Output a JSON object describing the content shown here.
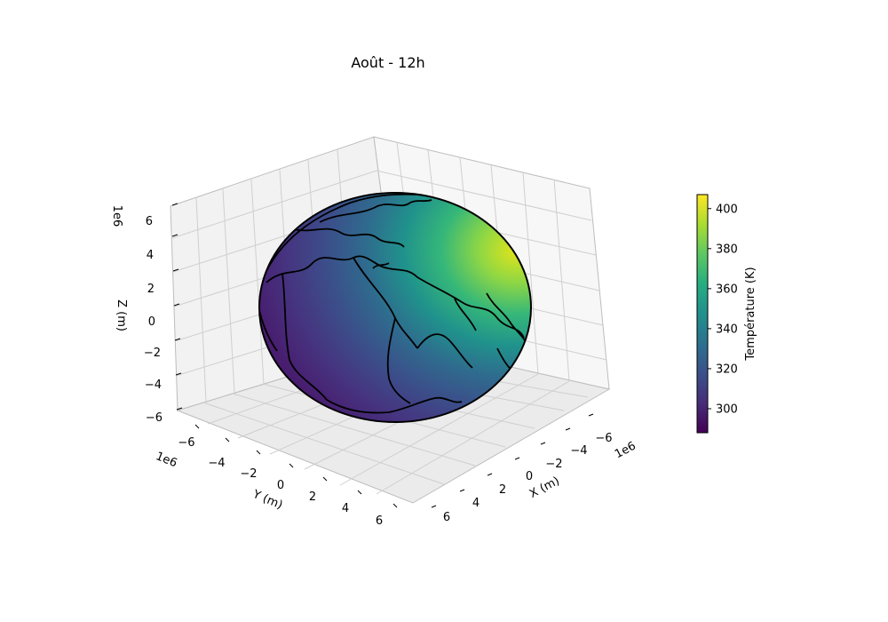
{
  "chart_data": {
    "type": "surface3d",
    "title": "Août - 12h",
    "x_axis": {
      "label": "X (m)",
      "offset_text": "1e6",
      "ticks": [
        "−6",
        "−4",
        "−2",
        "0",
        "2",
        "4",
        "6"
      ]
    },
    "y_axis": {
      "label": "Y (m)",
      "offset_text": "1e6",
      "ticks": [
        "−6",
        "−4",
        "−2",
        "0",
        "2",
        "4",
        "6"
      ]
    },
    "z_axis": {
      "label": "Z (m)",
      "offset_text": "1e6",
      "ticks": [
        "−6",
        "−4",
        "−2",
        "0",
        "2",
        "4",
        "6"
      ]
    },
    "range_1e6": [
      -6.4,
      6.4
    ],
    "surface": "sphere (Earth, radius ≈ 6.37e6 m) colored by temperature, with coastline outlines",
    "colorbar": {
      "label": "Température (K)",
      "colormap": "viridis",
      "range": [
        288,
        407
      ],
      "ticks": [
        "300",
        "320",
        "340",
        "360",
        "380",
        "400"
      ]
    },
    "grid": true
  },
  "colors": {
    "viridis_low": "#440154",
    "viridis_mid": "#21908d",
    "viridis_high": "#fde725",
    "coastline": "#000000",
    "pane": "#f2f2f2",
    "gridline": "#cfcfcf"
  }
}
